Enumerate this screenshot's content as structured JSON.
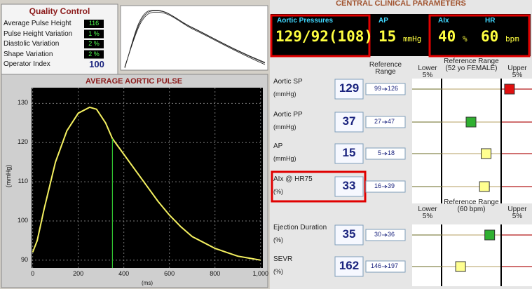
{
  "quality_control": {
    "title": "Quality Control",
    "items": [
      {
        "label": "Average Pulse Height",
        "value": "116"
      },
      {
        "label": "Pulse Height Variation",
        "value": "1 %"
      },
      {
        "label": "Diastolic Variation",
        "value": "2 %"
      },
      {
        "label": "Shape Variation",
        "value": "2 %"
      },
      {
        "label": "Operator Index",
        "value": "100"
      }
    ]
  },
  "pulse_chart": {
    "type": "line",
    "title": "AVERAGE AORTIC PULSE",
    "x_label": "(ms)",
    "y_label": "(mmHg)",
    "x": [
      0,
      20,
      50,
      100,
      150,
      200,
      250,
      280,
      320,
      350,
      400,
      450,
      500,
      550,
      600,
      650,
      700,
      750,
      800,
      850,
      900,
      950,
      1000
    ],
    "y": [
      92,
      95,
      103,
      115,
      123,
      127.5,
      129,
      128.5,
      125,
      121,
      117,
      113,
      109,
      105,
      101.5,
      98.5,
      96,
      94.5,
      93,
      92,
      91,
      90.5,
      90
    ],
    "color": "#f4f060",
    "marker_x": 350,
    "xlim": [
      -5,
      1010
    ],
    "ylim": [
      88,
      134
    ],
    "xticks": [
      0,
      200,
      400,
      600,
      800,
      {
        "value": 1000,
        "label": "1,000"
      }
    ],
    "yticks": [
      90,
      100,
      110,
      120,
      130
    ],
    "grid": true
  },
  "parameters": {
    "title": "CENTRAL CLINICAL PARAMETERS",
    "summary": {
      "aortic_pressures_label": "Aortic Pressures",
      "aortic_pressures": "129/92(108)",
      "ap_label": "AP",
      "ap": 15,
      "ap_unit": "mmHg",
      "aix_label": "AIx",
      "aix": 40,
      "aix_unit": "%",
      "hr_label": "HR",
      "hr": 60,
      "hr_unit": "bpm"
    },
    "groups": [
      {
        "headers": {
          "range": "Reference Range",
          "lower": "Lower 5%",
          "reference": "Reference Range (52 yo FEMALE)",
          "upper": "Upper 5%"
        },
        "rows": [
          {
            "name": "Aortic SP",
            "unit": "(mmHg)",
            "value": 129,
            "range_low": 99,
            "range_high": 126,
            "marker_color": "#e01010"
          },
          {
            "name": "Aortic PP",
            "unit": "(mmHg)",
            "value": 37,
            "range_low": 27,
            "range_high": 47,
            "marker_color": "#30b030"
          },
          {
            "name": "AP",
            "unit": "(mmHg)",
            "value": 15,
            "range_low": 5,
            "range_high": 18,
            "marker_color": "#ffff90"
          },
          {
            "name": "AIx @ HR75",
            "unit": "(%)",
            "value": 33,
            "range_low": 16,
            "range_high": 39,
            "marker_color": "#ffff90"
          }
        ]
      },
      {
        "headers": {
          "lower": "Lower 5%",
          "reference": "Reference Range (60 bpm)",
          "upper": "Upper 5%"
        },
        "rows": [
          {
            "name": "Ejection Duration",
            "unit": "(%)",
            "value": 35,
            "range_low": 30,
            "range_high": 36,
            "marker_color": "#30b030"
          },
          {
            "name": "SEVR",
            "unit": "(%)",
            "value": 162,
            "range_low": 146,
            "range_high": 197,
            "marker_color": "#ffff90"
          }
        ]
      }
    ]
  }
}
